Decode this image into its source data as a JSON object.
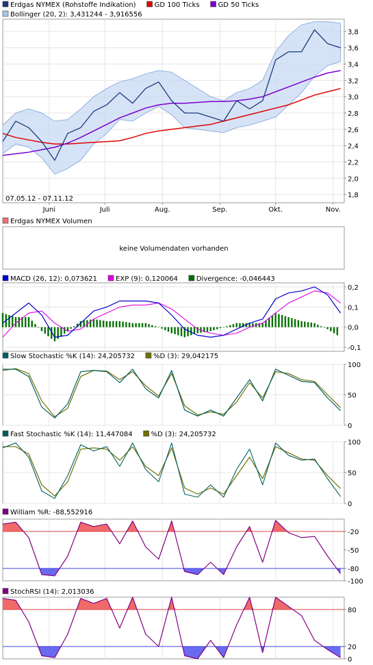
{
  "panels": {
    "price": {
      "legend": [
        {
          "label": "Erdgas NYMEX (Rohstoffe Indikation)",
          "color": "#1a3a78"
        },
        {
          "label": "GD 100 Ticks",
          "color": "#e00000"
        },
        {
          "label": "GD 50 Ticks",
          "color": "#7a00d0"
        },
        {
          "label": "Bollinger (20, 2): 3,431244 - 3,916556",
          "color": "#a9c4ea"
        }
      ],
      "date_range": "07.05.12 - 07.11.12",
      "y_ticks": [
        "3,8",
        "3,6",
        "3,4",
        "3,2",
        "3,0",
        "2,8",
        "2,6",
        "2,4",
        "2,2",
        "2,0",
        "1,8"
      ],
      "x_ticks": [
        "Juni",
        "Juli",
        "Aug.",
        "Sep.",
        "Okt.",
        "Nov."
      ]
    },
    "volume": {
      "legend": [
        {
          "label": "Erdgas NYMEX Volumen",
          "color": "#f07070"
        }
      ],
      "message": "keine Volumendaten vorhanden"
    },
    "macd": {
      "legend": [
        {
          "label": "MACD (26, 12): 0,073621",
          "color": "#0000d0"
        },
        {
          "label": "EXP (9): 0,120064",
          "color": "#e000e0"
        },
        {
          "label": "Divergence: -0,046443",
          "color": "#007000"
        }
      ],
      "y_ticks": [
        "0,2",
        "0,1",
        "0,0",
        "-0,1"
      ]
    },
    "slow_stoch": {
      "legend": [
        {
          "label": "Slow Stochastic %K (14): 24,205732",
          "color": "#006060"
        },
        {
          "label": "%D (3): 29,042175",
          "color": "#707000"
        }
      ],
      "y_ticks": [
        "100",
        "50",
        "0"
      ]
    },
    "fast_stoch": {
      "legend": [
        {
          "label": "Fast Stochastic %K (14): 11,447084",
          "color": "#006060"
        },
        {
          "label": "%D (3): 24,205732",
          "color": "#707000"
        }
      ],
      "y_ticks": [
        "100",
        "50",
        "0"
      ]
    },
    "william": {
      "legend": [
        {
          "label": "William %R: -88,552916",
          "color": "#800080"
        }
      ],
      "y_ticks": [
        "-20",
        "-50",
        "-80",
        "-100"
      ]
    },
    "stochrsi": {
      "legend": [
        {
          "label": "StochRSI (14): 2,013036",
          "color": "#800080"
        }
      ],
      "y_ticks": [
        "80",
        "20",
        "0"
      ]
    }
  },
  "chart_data": [
    {
      "type": "line",
      "x": [
        "2012-05-07",
        "2012-05-14",
        "2012-05-21",
        "2012-05-28",
        "2012-06-04",
        "2012-06-11",
        "2012-06-18",
        "2012-06-25",
        "2012-07-02",
        "2012-07-09",
        "2012-07-16",
        "2012-07-23",
        "2012-07-30",
        "2012-08-06",
        "2012-08-13",
        "2012-08-20",
        "2012-08-27",
        "2012-09-03",
        "2012-09-10",
        "2012-09-17",
        "2012-09-24",
        "2012-10-01",
        "2012-10-08",
        "2012-10-15",
        "2012-10-22",
        "2012-10-29",
        "2012-11-05"
      ],
      "series": [
        {
          "name": "Erdgas NYMEX (Rohstoffe Indikation)",
          "color": "#1a3a78",
          "values": [
            2.45,
            2.7,
            2.62,
            2.45,
            2.22,
            2.55,
            2.62,
            2.82,
            2.9,
            3.05,
            2.92,
            3.1,
            3.18,
            2.95,
            2.8,
            2.8,
            2.75,
            2.7,
            2.95,
            2.85,
            2.95,
            3.45,
            3.55,
            3.55,
            3.82,
            3.65,
            3.6
          ]
        },
        {
          "name": "GD 100 Ticks",
          "color": "#e00000",
          "values": [
            2.55,
            2.5,
            2.47,
            2.44,
            2.42,
            2.42,
            2.43,
            2.44,
            2.45,
            2.46,
            2.5,
            2.55,
            2.58,
            2.6,
            2.62,
            2.64,
            2.66,
            2.7,
            2.74,
            2.78,
            2.82,
            2.86,
            2.9,
            2.96,
            3.02,
            3.06,
            3.1
          ]
        },
        {
          "name": "GD 50 Ticks",
          "color": "#7a00d0",
          "values": [
            2.28,
            2.3,
            2.32,
            2.35,
            2.38,
            2.43,
            2.5,
            2.58,
            2.66,
            2.74,
            2.8,
            2.86,
            2.9,
            2.92,
            2.92,
            2.93,
            2.94,
            2.94,
            2.95,
            2.97,
            3.0,
            3.06,
            3.12,
            3.18,
            3.24,
            3.29,
            3.32
          ]
        },
        {
          "name": "Bollinger upper",
          "color": "#a9c4ea",
          "values": [
            2.65,
            2.8,
            2.85,
            2.8,
            2.7,
            2.72,
            2.85,
            3.0,
            3.1,
            3.18,
            3.22,
            3.28,
            3.32,
            3.3,
            3.2,
            3.1,
            3.0,
            2.95,
            3.05,
            3.1,
            3.2,
            3.55,
            3.75,
            3.88,
            3.92,
            3.92,
            3.9
          ]
        },
        {
          "name": "Bollinger lower",
          "color": "#a9c4ea",
          "values": [
            2.3,
            2.42,
            2.38,
            2.25,
            2.05,
            2.12,
            2.22,
            2.42,
            2.55,
            2.72,
            2.7,
            2.8,
            2.88,
            2.78,
            2.62,
            2.6,
            2.58,
            2.56,
            2.62,
            2.65,
            2.7,
            2.75,
            2.9,
            3.05,
            3.25,
            3.38,
            3.43
          ]
        }
      ],
      "ylim": [
        1.7,
        3.95
      ]
    },
    {
      "type": "line",
      "x": [
        "2012-05-07",
        "2012-05-14",
        "2012-05-21",
        "2012-05-28",
        "2012-06-04",
        "2012-06-11",
        "2012-06-18",
        "2012-06-25",
        "2012-07-02",
        "2012-07-09",
        "2012-07-16",
        "2012-07-23",
        "2012-07-30",
        "2012-08-06",
        "2012-08-13",
        "2012-08-20",
        "2012-08-27",
        "2012-09-03",
        "2012-09-10",
        "2012-09-17",
        "2012-09-24",
        "2012-10-01",
        "2012-10-08",
        "2012-10-15",
        "2012-10-22",
        "2012-10-29",
        "2012-11-05"
      ],
      "series": [
        {
          "name": "MACD (26, 12)",
          "color": "#0000d0",
          "values": [
            0.02,
            0.07,
            0.12,
            0.06,
            -0.05,
            -0.04,
            0.02,
            0.08,
            0.1,
            0.13,
            0.13,
            0.13,
            0.12,
            0.06,
            -0.01,
            -0.04,
            -0.05,
            -0.04,
            -0.01,
            0.02,
            0.04,
            0.14,
            0.17,
            0.18,
            0.2,
            0.16,
            0.07
          ]
        },
        {
          "name": "EXP (9)",
          "color": "#e000e0",
          "values": [
            -0.05,
            0.02,
            0.07,
            0.08,
            0.02,
            -0.02,
            -0.01,
            0.04,
            0.07,
            0.1,
            0.11,
            0.11,
            0.12,
            0.09,
            0.04,
            -0.01,
            -0.03,
            -0.04,
            -0.03,
            0.0,
            0.02,
            0.07,
            0.12,
            0.15,
            0.18,
            0.17,
            0.12
          ]
        },
        {
          "name": "Divergence",
          "color": "#007000",
          "values": [
            0.07,
            0.05,
            0.05,
            -0.02,
            -0.07,
            -0.02,
            0.03,
            0.04,
            0.03,
            0.03,
            0.02,
            0.02,
            0.0,
            -0.03,
            -0.05,
            -0.03,
            -0.02,
            0.0,
            0.02,
            0.02,
            0.02,
            0.07,
            0.05,
            0.03,
            0.02,
            -0.01,
            -0.05
          ]
        }
      ],
      "ylim": [
        -0.12,
        0.22
      ]
    },
    {
      "type": "line",
      "x": [
        "2012-05-07",
        "2012-05-14",
        "2012-05-21",
        "2012-05-28",
        "2012-06-04",
        "2012-06-11",
        "2012-06-18",
        "2012-06-25",
        "2012-07-02",
        "2012-07-09",
        "2012-07-16",
        "2012-07-23",
        "2012-07-30",
        "2012-08-06",
        "2012-08-13",
        "2012-08-20",
        "2012-08-27",
        "2012-09-03",
        "2012-09-10",
        "2012-09-17",
        "2012-09-24",
        "2012-10-01",
        "2012-10-08",
        "2012-10-15",
        "2012-10-22",
        "2012-10-29",
        "2012-11-05"
      ],
      "series": [
        {
          "name": "Slow Stochastic %K (14)",
          "color": "#006060",
          "values": [
            92,
            92,
            80,
            30,
            12,
            35,
            88,
            90,
            88,
            70,
            92,
            60,
            45,
            90,
            25,
            15,
            25,
            15,
            45,
            75,
            40,
            92,
            82,
            72,
            70,
            45,
            24
          ]
        },
        {
          "name": "%D (3)",
          "color": "#707000",
          "values": [
            90,
            93,
            85,
            40,
            14,
            28,
            80,
            90,
            89,
            75,
            88,
            65,
            48,
            85,
            32,
            17,
            22,
            18,
            38,
            70,
            45,
            88,
            85,
            75,
            72,
            50,
            29
          ]
        }
      ],
      "ylim": [
        0,
        100
      ]
    },
    {
      "type": "line",
      "x": [
        "2012-05-07",
        "2012-05-14",
        "2012-05-21",
        "2012-05-28",
        "2012-06-04",
        "2012-06-11",
        "2012-06-18",
        "2012-06-25",
        "2012-07-02",
        "2012-07-09",
        "2012-07-16",
        "2012-07-23",
        "2012-07-30",
        "2012-08-06",
        "2012-08-13",
        "2012-08-20",
        "2012-08-27",
        "2012-09-03",
        "2012-09-10",
        "2012-09-17",
        "2012-09-24",
        "2012-10-01",
        "2012-10-08",
        "2012-10-15",
        "2012-10-22",
        "2012-10-29",
        "2012-11-05"
      ],
      "series": [
        {
          "name": "Fast Stochastic %K (14)",
          "color": "#006060",
          "values": [
            90,
            98,
            75,
            20,
            8,
            45,
            95,
            85,
            92,
            60,
            98,
            55,
            35,
            98,
            15,
            10,
            30,
            10,
            55,
            88,
            30,
            98,
            78,
            70,
            72,
            40,
            11
          ]
        },
        {
          "name": "%D (3)",
          "color": "#707000",
          "values": [
            92,
            92,
            80,
            30,
            12,
            35,
            88,
            90,
            88,
            70,
            92,
            60,
            45,
            90,
            25,
            15,
            25,
            15,
            45,
            75,
            40,
            92,
            82,
            72,
            70,
            45,
            24
          ]
        }
      ],
      "ylim": [
        0,
        100
      ]
    },
    {
      "type": "line",
      "x": [
        "2012-05-07",
        "2012-05-14",
        "2012-05-21",
        "2012-05-28",
        "2012-06-04",
        "2012-06-11",
        "2012-06-18",
        "2012-06-25",
        "2012-07-02",
        "2012-07-09",
        "2012-07-16",
        "2012-07-23",
        "2012-07-30",
        "2012-08-06",
        "2012-08-13",
        "2012-08-20",
        "2012-08-27",
        "2012-09-03",
        "2012-09-10",
        "2012-09-17",
        "2012-09-24",
        "2012-10-01",
        "2012-10-08",
        "2012-10-15",
        "2012-10-22",
        "2012-10-29",
        "2012-11-05"
      ],
      "series": [
        {
          "name": "William %R",
          "color": "#800080",
          "values": [
            -8,
            -5,
            -30,
            -90,
            -92,
            -60,
            -5,
            -12,
            -8,
            -40,
            -3,
            -45,
            -65,
            -3,
            -85,
            -90,
            -70,
            -90,
            -45,
            -12,
            -70,
            -2,
            -22,
            -30,
            -28,
            -60,
            -88.55
          ]
        }
      ],
      "ylim": [
        -100,
        0
      ]
    },
    {
      "type": "line",
      "x": [
        "2012-05-07",
        "2012-05-14",
        "2012-05-21",
        "2012-05-28",
        "2012-06-04",
        "2012-06-11",
        "2012-06-18",
        "2012-06-25",
        "2012-07-02",
        "2012-07-09",
        "2012-07-16",
        "2012-07-23",
        "2012-07-30",
        "2012-08-06",
        "2012-08-13",
        "2012-08-20",
        "2012-08-27",
        "2012-09-03",
        "2012-09-10",
        "2012-09-17",
        "2012-09-24",
        "2012-10-01",
        "2012-10-08",
        "2012-10-15",
        "2012-10-22",
        "2012-10-29",
        "2012-11-05"
      ],
      "series": [
        {
          "name": "StochRSI (14)",
          "color": "#800080",
          "values": [
            98,
            95,
            60,
            5,
            2,
            40,
            98,
            90,
            98,
            50,
            100,
            40,
            20,
            100,
            5,
            0,
            30,
            2,
            55,
            100,
            10,
            100,
            85,
            70,
            30,
            15,
            2
          ]
        }
      ],
      "ylim": [
        0,
        100
      ]
    }
  ]
}
